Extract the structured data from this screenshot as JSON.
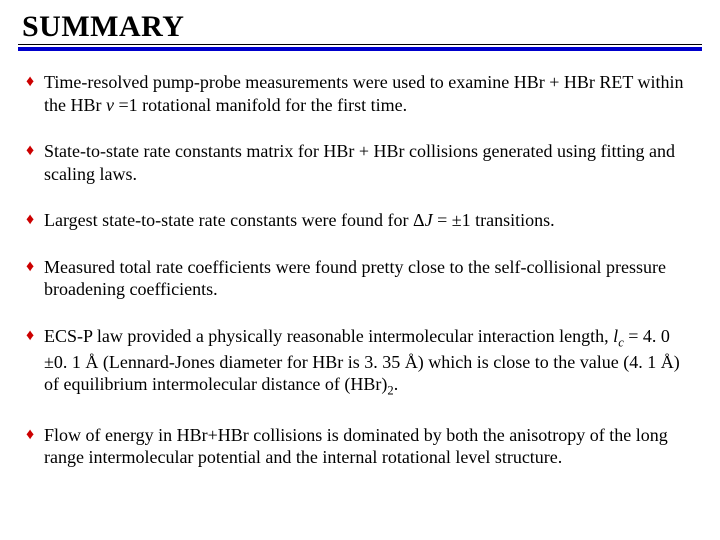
{
  "title": "SUMMARY",
  "bullet_color": "#cc0000",
  "underline_color": "#0000cc",
  "text_color": "#000000",
  "background_color": "#ffffff",
  "font_size_title": 30,
  "font_size_body": 18,
  "bullets": [
    {
      "pre": "Time-resolved pump-probe measurements were used to examine HBr + HBr RET within the HBr ",
      "ital": "v",
      "post": " =1 rotational manifold for the first time."
    },
    {
      "pre": " State-to-state rate constants matrix for HBr + HBr collisions generated using fitting and scaling laws.",
      "ital": "",
      "post": ""
    },
    {
      "pre": " Largest state-to-state rate constants were found for Δ",
      "ital": "J",
      "post": " = ±1 transitions."
    },
    {
      "pre": "Measured total rate coefficients were found pretty close to the self-collisional pressure broadening coefficients.",
      "ital": "",
      "post": ""
    },
    {
      "pre": "ECS-P law provided a physically reasonable intermolecular interaction length, ",
      "ital": "l",
      "sub": "c",
      "post": " =  4. 0 ±0. 1 Å (Lennard-Jones diameter for HBr is 3. 35 Å) which is close to the value (4. 1 Å) of equilibrium intermolecular distance of (HBr)",
      "sub2": "2",
      "tail": "."
    },
    {
      "pre": "Flow of energy in HBr+HBr collisions is dominated by both the anisotropy of the long range intermolecular potential and the internal rotational level structure.",
      "ital": "",
      "post": ""
    }
  ]
}
